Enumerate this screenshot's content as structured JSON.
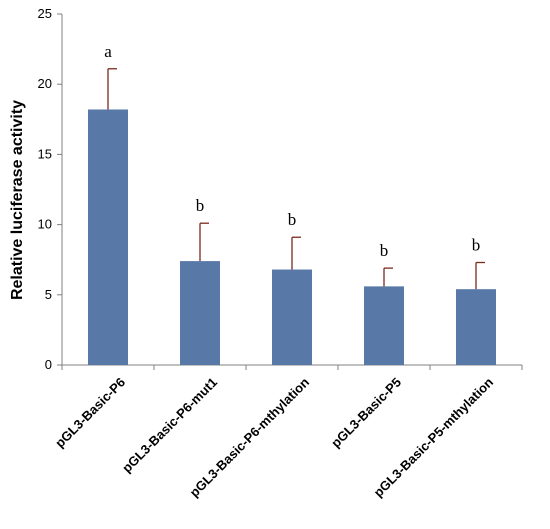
{
  "chart_data": {
    "type": "bar",
    "ylabel": "Relative luciferase activity",
    "ylim": [
      0,
      25
    ],
    "yticks": [
      0,
      5,
      10,
      15,
      20,
      25
    ],
    "grid": false,
    "categories": [
      "pGL3-Basic-P6",
      "pGL3-Basic-P6-mut1",
      "pGL3-Basic-P6-mthylation",
      "pGL3-Basic-P5",
      "pGL3-Basic-P5-mthylation"
    ],
    "values": [
      18.2,
      7.4,
      6.8,
      5.6,
      5.4
    ],
    "error_upper": [
      2.9,
      2.7,
      2.3,
      1.3,
      1.9
    ],
    "significance_labels": [
      "a",
      "b",
      "b",
      "b",
      "b"
    ],
    "bar_color": "#5878A8",
    "error_bar_color": "#7B2A1E"
  }
}
